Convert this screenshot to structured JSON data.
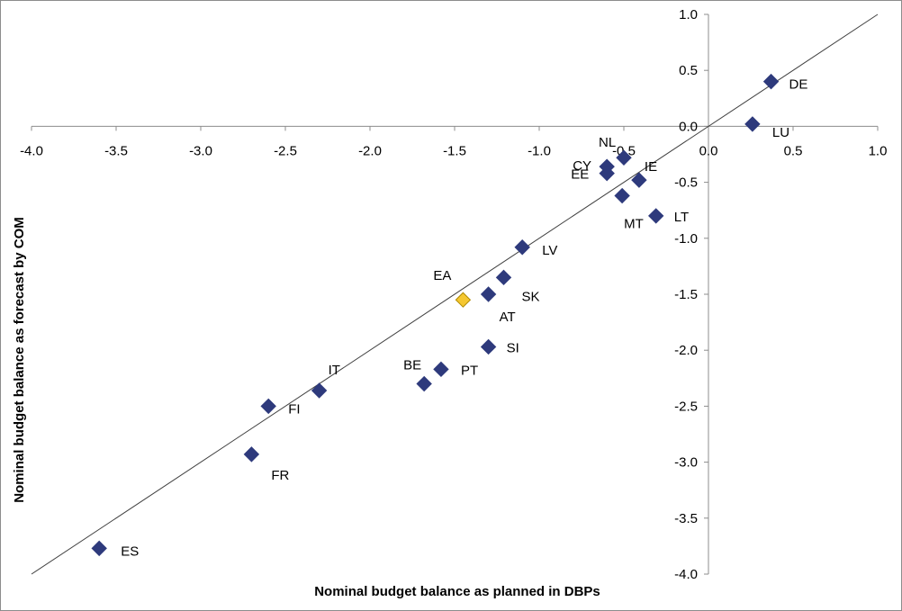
{
  "chart_data": {
    "type": "scatter",
    "xlabel": "Nominal budget balance as planned in DBPs",
    "ylabel": "Nominal budget balance as forecast by COM",
    "xlim": [
      -4.0,
      1.0
    ],
    "ylim": [
      -4.0,
      1.0
    ],
    "x_ticks": [
      "-4.0",
      "-3.5",
      "-3.0",
      "-2.5",
      "-2.0",
      "-1.5",
      "-1.0",
      "-0.5",
      "0.0",
      "0.5",
      "1.0"
    ],
    "y_ticks": [
      "1.0",
      "0.5",
      "0.0",
      "-0.5",
      "-1.0",
      "-1.5",
      "-2.0",
      "-2.5",
      "-3.0",
      "-3.5",
      "-4.0"
    ],
    "x_tick_values": [
      -4.0,
      -3.5,
      -3.0,
      -2.5,
      -2.0,
      -1.5,
      -1.0,
      -0.5,
      0.0,
      0.5,
      1.0
    ],
    "y_tick_values": [
      1.0,
      0.5,
      0.0,
      -0.5,
      -1.0,
      -1.5,
      -2.0,
      -2.5,
      -3.0,
      -3.5,
      -4.0
    ],
    "reference_line": {
      "from": [
        -4.0,
        -4.0
      ],
      "to": [
        1.0,
        1.0
      ]
    },
    "grid": false,
    "legend": "none",
    "colors": {
      "countries": "#2e3a7c",
      "euro_area": "#f5c731",
      "line": "#404040"
    },
    "points": [
      {
        "label": "DE",
        "x": 0.37,
        "y": 0.4,
        "highlight": false
      },
      {
        "label": "LU",
        "x": 0.26,
        "y": 0.02,
        "highlight": false
      },
      {
        "label": "NL",
        "x": -0.5,
        "y": -0.28,
        "highlight": false
      },
      {
        "label": "CY",
        "x": -0.6,
        "y": -0.36,
        "highlight": false
      },
      {
        "label": "EE",
        "x": -0.6,
        "y": -0.42,
        "highlight": false
      },
      {
        "label": "IE",
        "x": -0.41,
        "y": -0.48,
        "highlight": false
      },
      {
        "label": "MT",
        "x": -0.51,
        "y": -0.62,
        "highlight": false
      },
      {
        "label": "LT",
        "x": -0.31,
        "y": -0.8,
        "highlight": false
      },
      {
        "label": "LV",
        "x": -1.1,
        "y": -1.08,
        "highlight": false
      },
      {
        "label": "SK",
        "x": -1.21,
        "y": -1.35,
        "highlight": false
      },
      {
        "label": "AT",
        "x": -1.3,
        "y": -1.5,
        "highlight": false
      },
      {
        "label": "EA",
        "x": -1.45,
        "y": -1.55,
        "highlight": true
      },
      {
        "label": "SI",
        "x": -1.3,
        "y": -1.97,
        "highlight": false
      },
      {
        "label": "PT",
        "x": -1.58,
        "y": -2.17,
        "highlight": false
      },
      {
        "label": "BE",
        "x": -1.68,
        "y": -2.3,
        "highlight": false
      },
      {
        "label": "IT",
        "x": -2.3,
        "y": -2.36,
        "highlight": false
      },
      {
        "label": "FI",
        "x": -2.6,
        "y": -2.5,
        "highlight": false
      },
      {
        "label": "FR",
        "x": -2.7,
        "y": -2.93,
        "highlight": false
      },
      {
        "label": "ES",
        "x": -3.6,
        "y": -3.77,
        "highlight": false
      }
    ]
  }
}
